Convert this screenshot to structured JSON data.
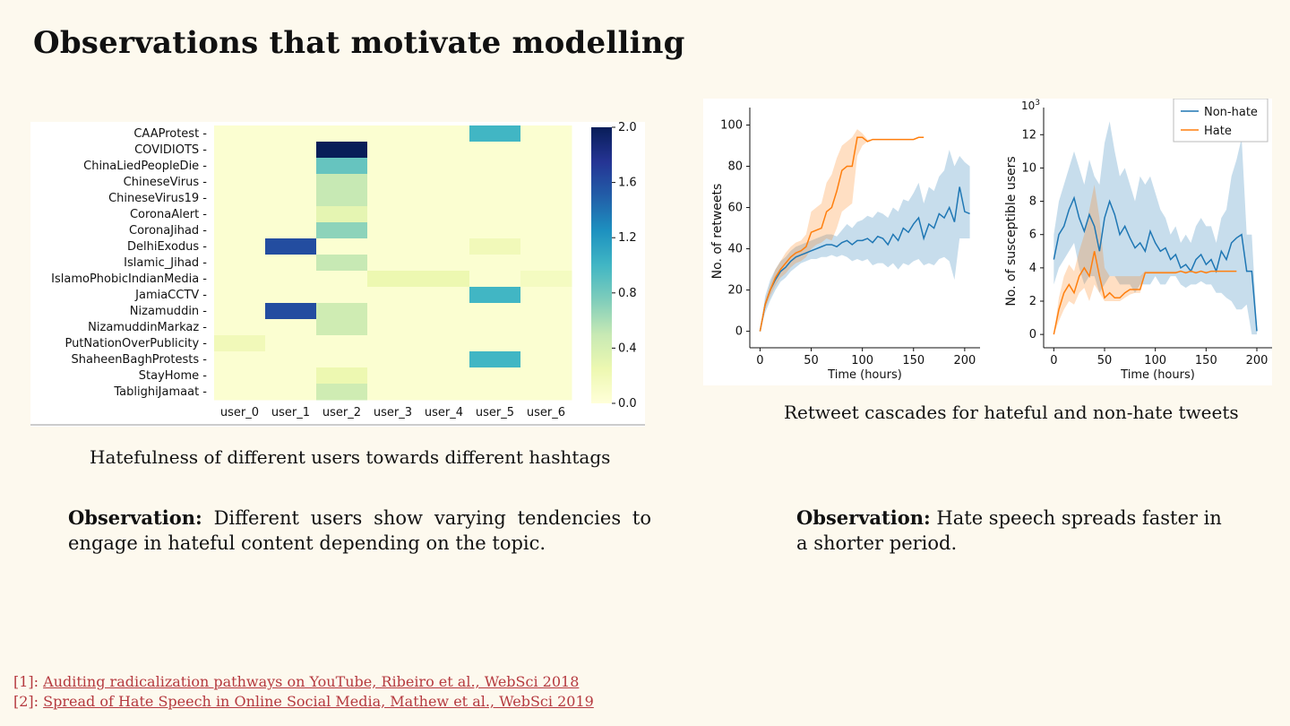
{
  "slide": {
    "title": "Observations that motivate modelling"
  },
  "heatmap": {
    "caption": "Hatefulness of different users towards different hashtags",
    "rows": [
      "CAAProtest",
      "COVIDIOTS",
      "ChinaLiedPeopleDie",
      "ChineseVirus",
      "ChineseVirus19",
      "CoronaAlert",
      "CoronaJihad",
      "DelhiExodus",
      "Islamic_Jihad",
      "IslamoPhobicIndianMedia",
      "JamiaCCTV",
      "Nizamuddin",
      "NizamuddinMarkaz",
      "PutNationOverPublicity",
      "ShaheenBaghProtests",
      "StayHome",
      "TablighiJamaat"
    ],
    "columns": [
      "user_0",
      "user_1",
      "user_2",
      "user_3",
      "user_4",
      "user_5",
      "user_6"
    ],
    "colorbar_ticks": [
      "0.0",
      "0.4",
      "0.8",
      "1.2",
      "1.6",
      "2.0"
    ],
    "colorscale": [
      "#ffffd9",
      "#edf8b1",
      "#c7e9b4",
      "#7fcdbb",
      "#41b6c4",
      "#1d91c0",
      "#225ea8",
      "#253494",
      "#081d58"
    ]
  },
  "cascades": {
    "caption": "Retweet cascades for hateful and non-hate tweets",
    "legend": [
      "Non-hate",
      "Hate"
    ],
    "colors": {
      "nonhate": "#1f77b4",
      "hate": "#ff7f0e"
    }
  },
  "chart_data": [
    {
      "type": "heatmap",
      "title": "",
      "x": [
        "user_0",
        "user_1",
        "user_2",
        "user_3",
        "user_4",
        "user_5",
        "user_6"
      ],
      "y": [
        "CAAProtest",
        "COVIDIOTS",
        "ChinaLiedPeopleDie",
        "ChineseVirus",
        "ChineseVirus19",
        "CoronaAlert",
        "CoronaJihad",
        "DelhiExodus",
        "Islamic_Jihad",
        "IslamoPhobicIndianMedia",
        "JamiaCCTV",
        "Nizamuddin",
        "NizamuddinMarkaz",
        "PutNationOverPublicity",
        "ShaheenBaghProtests",
        "StayHome",
        "TablighiJamaat"
      ],
      "values": [
        [
          0.05,
          0.05,
          0.05,
          0.05,
          0.05,
          1.0,
          0.05
        ],
        [
          0.05,
          0.05,
          2.0,
          0.05,
          0.05,
          0.05,
          0.05
        ],
        [
          0.05,
          0.05,
          0.85,
          0.05,
          0.05,
          0.05,
          0.05
        ],
        [
          0.05,
          0.05,
          0.5,
          0.05,
          0.05,
          0.05,
          0.05
        ],
        [
          0.05,
          0.05,
          0.5,
          0.05,
          0.05,
          0.05,
          0.05
        ],
        [
          0.05,
          0.05,
          0.3,
          0.05,
          0.05,
          0.05,
          0.05
        ],
        [
          0.05,
          0.05,
          0.7,
          0.05,
          0.05,
          0.05,
          0.05
        ],
        [
          0.05,
          1.6,
          0.05,
          0.05,
          0.05,
          0.2,
          0.05
        ],
        [
          0.05,
          0.05,
          0.5,
          0.05,
          0.05,
          0.05,
          0.05
        ],
        [
          0.05,
          0.05,
          0.05,
          0.25,
          0.25,
          0.05,
          0.15
        ],
        [
          0.05,
          0.05,
          0.05,
          0.05,
          0.05,
          1.0,
          0.05
        ],
        [
          0.05,
          1.6,
          0.45,
          0.05,
          0.05,
          0.05,
          0.05
        ],
        [
          0.05,
          0.05,
          0.45,
          0.05,
          0.05,
          0.05,
          0.05
        ],
        [
          0.2,
          0.05,
          0.05,
          0.05,
          0.05,
          0.05,
          0.05
        ],
        [
          0.05,
          0.05,
          0.05,
          0.05,
          0.05,
          1.0,
          0.05
        ],
        [
          0.05,
          0.05,
          0.25,
          0.05,
          0.05,
          0.05,
          0.05
        ],
        [
          0.05,
          0.05,
          0.45,
          0.05,
          0.05,
          0.05,
          0.05
        ]
      ],
      "zlim": [
        0,
        2.0
      ]
    },
    {
      "type": "line",
      "xlabel": "Time (hours)",
      "ylabel": "No. of retweets",
      "xlim": [
        -10,
        215
      ],
      "ylim": [
        -8,
        105
      ],
      "xticks": [
        0,
        50,
        100,
        150,
        200
      ],
      "yticks": [
        0,
        20,
        40,
        60,
        80,
        100
      ],
      "series": [
        {
          "name": "Non-hate",
          "x": [
            0,
            5,
            10,
            15,
            20,
            25,
            30,
            35,
            40,
            45,
            50,
            55,
            60,
            65,
            70,
            75,
            80,
            85,
            90,
            95,
            100,
            105,
            110,
            115,
            120,
            125,
            130,
            135,
            140,
            145,
            150,
            155,
            160,
            165,
            170,
            175,
            180,
            185,
            190,
            195,
            200,
            205
          ],
          "y": [
            0,
            13,
            20,
            25,
            29,
            31,
            34,
            36,
            37,
            38,
            39,
            40,
            41,
            42,
            42,
            41,
            43,
            44,
            42,
            44,
            44,
            45,
            43,
            46,
            45,
            42,
            47,
            44,
            50,
            48,
            52,
            55,
            45,
            52,
            50,
            57,
            55,
            60,
            53,
            70,
            58,
            57
          ],
          "lower": [
            0,
            9,
            15,
            20,
            24,
            26,
            29,
            31,
            33,
            34,
            35,
            35,
            36,
            36,
            37,
            36,
            37,
            36,
            34,
            35,
            34,
            35,
            32,
            33,
            33,
            31,
            33,
            30,
            33,
            32,
            34,
            35,
            32,
            33,
            32,
            35,
            36,
            34,
            25,
            45,
            45,
            45
          ],
          "upper": [
            0,
            17,
            25,
            30,
            34,
            36,
            39,
            41,
            42,
            43,
            44,
            45,
            46,
            47,
            47,
            46,
            49,
            52,
            50,
            53,
            54,
            56,
            55,
            58,
            57,
            55,
            60,
            58,
            64,
            63,
            67,
            72,
            62,
            70,
            68,
            75,
            78,
            88,
            80,
            85,
            82,
            80
          ]
        },
        {
          "name": "Hate",
          "x": [
            0,
            5,
            10,
            15,
            20,
            25,
            30,
            35,
            40,
            45,
            50,
            55,
            60,
            65,
            70,
            75,
            80,
            85,
            90,
            95,
            100,
            105,
            110,
            115,
            120,
            125,
            130,
            135,
            140,
            145,
            150,
            155,
            160
          ],
          "y": [
            0,
            13,
            20,
            26,
            30,
            33,
            36,
            38,
            39,
            41,
            48,
            49,
            50,
            58,
            60,
            68,
            78,
            80,
            80,
            94,
            94,
            92,
            93,
            93,
            93,
            93,
            93,
            93,
            93,
            93,
            93,
            94,
            94
          ],
          "lower": [
            0,
            11,
            17,
            22,
            26,
            28,
            31,
            33,
            34,
            36,
            40,
            42,
            43,
            45,
            44,
            50,
            58,
            60,
            62,
            85,
            90,
            92,
            93,
            93,
            93,
            93,
            93,
            93,
            93,
            93,
            93,
            94,
            94
          ],
          "upper": [
            0,
            15,
            23,
            30,
            34,
            38,
            41,
            43,
            44,
            47,
            58,
            60,
            62,
            72,
            76,
            84,
            90,
            92,
            94,
            98,
            96,
            93,
            93,
            93,
            93,
            93,
            93,
            93,
            93,
            93,
            93,
            94,
            94
          ]
        }
      ]
    },
    {
      "type": "line",
      "xlabel": "Time (hours)",
      "ylabel": "No. of susceptible users",
      "yunit": "10^3",
      "xlim": [
        -10,
        215
      ],
      "ylim": [
        -0.8,
        13.2
      ],
      "xticks": [
        0,
        50,
        100,
        150,
        200
      ],
      "yticks": [
        0,
        2,
        4,
        6,
        8,
        10,
        12
      ],
      "legend": "top-right",
      "series": [
        {
          "name": "Non-hate",
          "x": [
            0,
            5,
            10,
            15,
            20,
            25,
            30,
            35,
            40,
            45,
            50,
            55,
            60,
            65,
            70,
            75,
            80,
            85,
            90,
            95,
            100,
            105,
            110,
            115,
            120,
            125,
            130,
            135,
            140,
            145,
            150,
            155,
            160,
            165,
            170,
            175,
            180,
            185,
            190,
            195,
            200
          ],
          "y": [
            4.5,
            6.0,
            6.5,
            7.5,
            8.2,
            7.0,
            6.2,
            7.2,
            6.5,
            5.0,
            7.0,
            8.0,
            7.2,
            6.0,
            6.5,
            5.8,
            5.2,
            5.5,
            5.0,
            6.2,
            5.5,
            5.0,
            5.2,
            4.5,
            4.8,
            4.0,
            4.2,
            3.8,
            4.5,
            4.8,
            4.2,
            4.5,
            3.8,
            5.0,
            4.5,
            5.5,
            5.8,
            6.0,
            3.8,
            3.8,
            0.2
          ],
          "lower": [
            3.0,
            4.0,
            4.5,
            5.0,
            5.5,
            4.0,
            3.0,
            3.5,
            3.5,
            2.5,
            3.0,
            3.5,
            3.5,
            3.0,
            3.0,
            3.0,
            2.5,
            3.0,
            3.0,
            3.0,
            3.5,
            3.0,
            3.0,
            3.5,
            3.5,
            3.0,
            2.8,
            3.0,
            3.0,
            3.2,
            3.0,
            3.0,
            2.5,
            2.5,
            2.2,
            2.0,
            1.5,
            1.5,
            1.8,
            0.0,
            0.0
          ],
          "upper": [
            6.0,
            8.0,
            9.0,
            10.0,
            11.0,
            10.0,
            9.0,
            10.5,
            9.5,
            9.0,
            11.5,
            12.8,
            11.0,
            9.5,
            10.0,
            9.0,
            8.0,
            9.5,
            9.0,
            9.5,
            8.5,
            7.5,
            7.0,
            6.0,
            6.5,
            5.5,
            6.0,
            5.5,
            6.5,
            7.0,
            6.5,
            6.5,
            5.5,
            7.0,
            7.5,
            9.5,
            10.5,
            11.8,
            6.0,
            6.0,
            0.5
          ]
        },
        {
          "name": "Hate",
          "x": [
            0,
            5,
            10,
            15,
            20,
            25,
            30,
            35,
            40,
            45,
            50,
            55,
            60,
            65,
            70,
            75,
            80,
            85,
            90,
            95,
            100,
            105,
            110,
            115,
            120,
            125,
            130,
            135,
            140,
            145,
            150,
            155,
            160,
            165,
            170,
            175,
            180
          ],
          "y": [
            0,
            1.5,
            2.5,
            3.0,
            2.5,
            3.5,
            4.0,
            3.5,
            5.0,
            3.5,
            2.2,
            2.5,
            2.2,
            2.2,
            2.5,
            2.7,
            2.7,
            2.7,
            3.7,
            3.7,
            3.7,
            3.7,
            3.7,
            3.7,
            3.7,
            3.8,
            3.7,
            3.8,
            3.7,
            3.8,
            3.7,
            3.8,
            3.8,
            3.8,
            3.8,
            3.8,
            3.8
          ],
          "lower": [
            0,
            0.8,
            1.5,
            2.0,
            1.8,
            2.5,
            2.8,
            2.0,
            3.0,
            2.5,
            2.0,
            2.0,
            2.0,
            2.0,
            2.2,
            2.4,
            2.5,
            2.5,
            3.7,
            3.7,
            3.7,
            3.7,
            3.7,
            3.7,
            3.7,
            3.8,
            3.7,
            3.8,
            3.7,
            3.8,
            3.7,
            3.8,
            3.8,
            3.8,
            3.8,
            3.8,
            3.8
          ],
          "upper": [
            0,
            2.2,
            3.5,
            4.2,
            3.8,
            5.0,
            6.0,
            7.5,
            9.0,
            7.0,
            4.0,
            3.5,
            3.5,
            3.5,
            3.5,
            3.5,
            3.5,
            3.5,
            3.8,
            3.8,
            3.8,
            3.8,
            3.8,
            3.8,
            3.8,
            3.8,
            3.8,
            3.8,
            3.8,
            3.8,
            3.8,
            3.8,
            3.8,
            3.8,
            3.8,
            3.8,
            3.8
          ]
        }
      ]
    }
  ],
  "observations": {
    "left_label": "Observation:",
    "left_text": " Different users show varying tendencies to engage in hateful content depending on the topic.",
    "right_label": "Observation:",
    "right_text": " Hate speech spreads faster in a shorter period."
  },
  "references": [
    {
      "prefix": "[1]: ",
      "text": "Auditing radicalization pathways on YouTube, Ribeiro et al., WebSci 2018"
    },
    {
      "prefix": "[2]: ",
      "text": "Spread of Hate Speech in Online Social Media, Mathew et al., WebSci 2019"
    }
  ]
}
